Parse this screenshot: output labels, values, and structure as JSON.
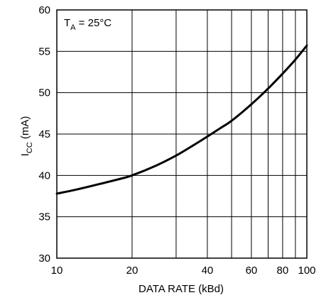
{
  "chart_data": {
    "type": "line",
    "xscale": "log",
    "xlim": [
      10,
      100
    ],
    "ylim": [
      30,
      60
    ],
    "grid": true,
    "xlabel": "DATA RATE (kBd)",
    "ylabel": {
      "main": "I",
      "sub": "CC",
      "unit": " (mA)"
    },
    "annotation": {
      "main": "T",
      "sub": "A",
      "rest": " = 25°C"
    },
    "x_tick_labels": [
      "10",
      "20",
      "40",
      "60",
      "80",
      "100"
    ],
    "y_tick_labels": [
      "30",
      "35",
      "40",
      "45",
      "50",
      "55",
      "60"
    ],
    "x_grid_values": [
      10,
      20,
      30,
      40,
      50,
      60,
      70,
      80,
      90,
      100
    ],
    "y_grid_values": [
      30,
      35,
      40,
      45,
      50,
      55,
      60
    ],
    "series": [
      {
        "x": [
          10,
          12,
          15,
          18,
          20,
          25,
          30,
          35,
          40,
          45,
          50,
          60,
          70,
          80,
          90,
          100
        ],
        "y": [
          37.8,
          38.3,
          39.0,
          39.6,
          40.0,
          41.2,
          42.4,
          43.6,
          44.7,
          45.7,
          46.6,
          48.6,
          50.5,
          52.3,
          54.0,
          55.7
        ]
      }
    ]
  }
}
